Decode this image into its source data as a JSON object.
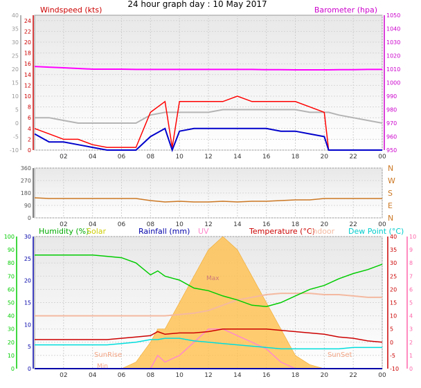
{
  "title": "24 hour graph day : 10 May 2017",
  "time_labels": [
    "02",
    "04",
    "06",
    "08",
    "10",
    "12",
    "14",
    "16",
    "18",
    "20",
    "22",
    "00"
  ],
  "colors": {
    "windspeed": "#ff0000",
    "windavg": "#0000cc",
    "windgray": "#b4b4b4",
    "barometer": "#ff00ff",
    "direction": "#cc7722",
    "humidity": "#00cc00",
    "solar": "#ffc04c",
    "rainfall": "#0000aa",
    "uv": "#ff88cc",
    "temperature": "#cc0000",
    "indoor": "#f4b9a0",
    "dewpoint": "#00dddd",
    "solar_label": "#cccc00"
  },
  "chart_data": [
    {
      "type": "line",
      "name": "wind-barometer",
      "left_axis": {
        "label": "Windspeed (kts)",
        "ticks": [
          0,
          2,
          4,
          6,
          8,
          10,
          12,
          14,
          16,
          18,
          20,
          22,
          24
        ],
        "ylim": [
          0,
          25
        ]
      },
      "far_left_axis": {
        "ticks": [
          -10,
          -5,
          0,
          5,
          10,
          15,
          20,
          25,
          30,
          35,
          40
        ],
        "ylim": [
          -10,
          40
        ]
      },
      "right_axis": {
        "label": "Barometer (hpa)",
        "ticks": [
          950,
          960,
          970,
          980,
          990,
          1000,
          1010,
          1020,
          1030,
          1040,
          1050
        ],
        "ylim": [
          950,
          1050
        ]
      },
      "x": [
        0,
        1,
        2,
        3,
        4,
        5,
        6,
        7,
        8,
        9,
        9.5,
        10,
        11,
        12,
        13,
        14,
        15,
        16,
        17,
        18,
        19,
        20,
        20.3,
        21,
        22,
        23,
        24
      ],
      "series": [
        {
          "name": "windspeed",
          "values": [
            4,
            3,
            2,
            2,
            1,
            0.5,
            0.5,
            0.5,
            7,
            9,
            0.5,
            9,
            9,
            9,
            9,
            10,
            9,
            9,
            9,
            9,
            8,
            7,
            0,
            0,
            0,
            0,
            0
          ]
        },
        {
          "name": "windavg",
          "values": [
            3,
            1.5,
            1.5,
            1,
            0.5,
            0,
            0,
            0,
            2.5,
            4,
            0,
            3.5,
            4,
            4,
            4,
            4,
            4,
            4,
            3.5,
            3.5,
            3,
            2.5,
            0,
            0,
            0,
            0,
            0
          ]
        },
        {
          "name": "windgray",
          "values": [
            6,
            6,
            5.5,
            5,
            5,
            5,
            5,
            5,
            6.5,
            7,
            7,
            7,
            7,
            7,
            7.5,
            7.5,
            7.5,
            7.5,
            7.5,
            7.5,
            7,
            7,
            7,
            6.5,
            6,
            5.5,
            5
          ]
        },
        {
          "name": "barometer",
          "values": [
            1012,
            1011.5,
            1011,
            1010.5,
            1010,
            1010,
            1010,
            1009.8,
            1009.8,
            1009.8,
            1009.8,
            1009.8,
            1009.8,
            1009.8,
            1009.8,
            1009.8,
            1009.8,
            1009.6,
            1009.6,
            1009.5,
            1009.5,
            1009.5,
            1009.5,
            1009.6,
            1009.6,
            1009.8,
            1009.8
          ]
        }
      ]
    },
    {
      "type": "line",
      "name": "wind-direction",
      "left_ticks": [
        0,
        90,
        180,
        270,
        360
      ],
      "ylim": [
        0,
        360
      ],
      "right_labels": [
        "N",
        "W",
        "S",
        "E",
        "N"
      ],
      "x": [
        0,
        1,
        2,
        3,
        4,
        5,
        6,
        7,
        8,
        9,
        10,
        11,
        12,
        13,
        14,
        15,
        16,
        17,
        18,
        19,
        20,
        21,
        22,
        23,
        24
      ],
      "series": [
        {
          "name": "direction",
          "values": [
            145,
            140,
            140,
            140,
            140,
            140,
            140,
            140,
            125,
            115,
            120,
            115,
            115,
            120,
            115,
            120,
            120,
            125,
            130,
            130,
            140,
            140,
            140,
            140,
            140
          ]
        }
      ]
    },
    {
      "type": "line",
      "name": "temperature-humidity",
      "legend": [
        "Humidity (%)",
        "Solar",
        "Rainfall (mm)",
        "UV",
        "Temperature (°C)",
        "Indoor",
        "Dew Point (°C)"
      ],
      "humidity_axis": {
        "ticks": [
          0,
          10,
          20,
          30,
          40,
          50,
          60,
          70,
          80,
          90,
          100
        ],
        "ylim": [
          0,
          100
        ]
      },
      "rain_axis": {
        "ticks": [
          0,
          5,
          10,
          15,
          20,
          25,
          30
        ],
        "ylim": [
          0,
          30
        ]
      },
      "temp_axis": {
        "ticks": [
          -10,
          -5,
          0,
          5,
          10,
          15,
          20,
          25,
          30,
          35,
          40
        ],
        "ylim": [
          -10,
          40
        ]
      },
      "uv_axis": {
        "ticks": [
          0,
          1,
          2,
          3,
          4,
          5,
          6,
          7,
          8,
          9,
          10
        ],
        "ylim": [
          0,
          10
        ]
      },
      "annotations": [
        "SunRise",
        "SunSet",
        "Max",
        "Min"
      ],
      "x": [
        0,
        1,
        2,
        3,
        4,
        5,
        6,
        7,
        8,
        8.5,
        9,
        10,
        11,
        12,
        13,
        14,
        15,
        16,
        17,
        18,
        19,
        20,
        21,
        22,
        23,
        24
      ],
      "series": [
        {
          "name": "humidity",
          "values": [
            86,
            86,
            86,
            86,
            86,
            85,
            84,
            80,
            71,
            74,
            70,
            67,
            61,
            59,
            55,
            52,
            48,
            47,
            50,
            55,
            60,
            63,
            68,
            72,
            75,
            79
          ]
        },
        {
          "name": "temperature",
          "values": [
            1,
            1,
            1,
            1,
            1,
            1,
            1.5,
            2,
            2.5,
            4,
            3,
            3.5,
            3.5,
            4,
            5,
            5,
            5,
            5,
            4.5,
            4,
            3.5,
            3,
            2,
            1.5,
            0.5,
            0
          ]
        },
        {
          "name": "dewpoint",
          "values": [
            -1,
            -1,
            -1,
            -1,
            -1,
            -1,
            -0.5,
            0,
            1,
            1,
            1.5,
            1.5,
            0.5,
            0,
            -0.5,
            -1,
            -1.5,
            -2,
            -2.5,
            -2.5,
            -2.5,
            -2.5,
            -2.5,
            -2,
            -2,
            -2
          ]
        },
        {
          "name": "indoor",
          "values": [
            10,
            10,
            10,
            10,
            10,
            10,
            10,
            10,
            10,
            10,
            10,
            10.5,
            11,
            12,
            14,
            16,
            17,
            18,
            18.5,
            18.5,
            18.5,
            18,
            18,
            17.5,
            17,
            17
          ]
        },
        {
          "name": "solar",
          "values": [
            0,
            0,
            0,
            0,
            0,
            0,
            0,
            0.5,
            2,
            3,
            3,
            5,
            7,
            9,
            10,
            9,
            7,
            5,
            3,
            1,
            0.3,
            0,
            0,
            0,
            0,
            0
          ]
        },
        {
          "name": "rainfall",
          "values": [
            0,
            0,
            0,
            0,
            0,
            0,
            0,
            0,
            0,
            0,
            0,
            0,
            0,
            0,
            0,
            0,
            0,
            0,
            0,
            0,
            0,
            0,
            0,
            0,
            0,
            0
          ]
        },
        {
          "name": "uv",
          "values": [
            0,
            0,
            0,
            0,
            0,
            0,
            0,
            0,
            0,
            1,
            0.5,
            1,
            2,
            3,
            3,
            2.5,
            2,
            1.5,
            0.5,
            0,
            0,
            0,
            0,
            0,
            0,
            0
          ]
        }
      ]
    }
  ]
}
